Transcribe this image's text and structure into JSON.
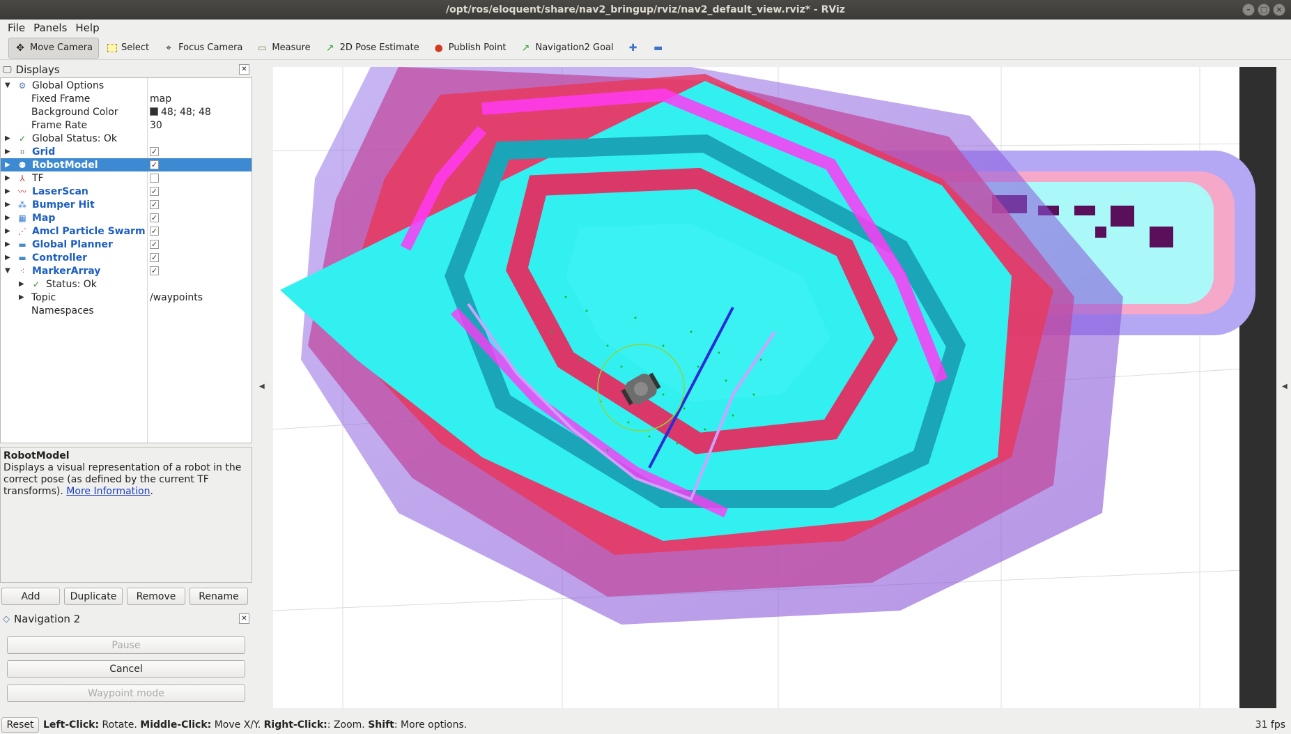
{
  "window": {
    "title": "/opt/ros/eloquent/share/nav2_bringup/rviz/nav2_default_view.rviz* - RViz"
  },
  "menu": [
    "File",
    "Panels",
    "Help"
  ],
  "toolbar": {
    "move_camera": "Move Camera",
    "select": "Select",
    "focus_camera": "Focus Camera",
    "measure": "Measure",
    "pose_estimate": "2D Pose Estimate",
    "publish_point": "Publish Point",
    "nav_goal": "Navigation2 Goal"
  },
  "displays_panel": {
    "title": "Displays",
    "rows": {
      "global_options": "Global Options",
      "fixed_frame": "Fixed Frame",
      "fixed_frame_value": "map",
      "background_color": "Background Color",
      "background_color_value": "48; 48; 48",
      "frame_rate": "Frame Rate",
      "frame_rate_value": "30",
      "global_status": "Global Status: Ok",
      "grid": "Grid",
      "robot_model": "RobotModel",
      "tf": "TF",
      "laser_scan": "LaserScan",
      "bumper_hit": "Bumper Hit",
      "map": "Map",
      "amcl": "Amcl Particle Swarm",
      "global_planner": "Global Planner",
      "controller": "Controller",
      "marker_array": "MarkerArray",
      "status_ok": "Status: Ok",
      "topic": "Topic",
      "topic_value": "/waypoints",
      "namespaces": "Namespaces"
    }
  },
  "description": {
    "title": "RobotModel",
    "text": "Displays a visual representation of a robot in the correct pose (as defined by the current TF transforms).",
    "link": "More Information",
    "tail": "."
  },
  "display_buttons": {
    "add": "Add",
    "duplicate": "Duplicate",
    "remove": "Remove",
    "rename": "Rename"
  },
  "nav_panel": {
    "title": "Navigation 2",
    "pause": "Pause",
    "cancel": "Cancel",
    "waypoint": "Waypoint mode"
  },
  "statusbar": {
    "reset": "Reset",
    "left_click": "Left-Click:",
    "left_click_desc": " Rotate. ",
    "middle_click": "Middle-Click:",
    "middle_click_desc": " Move X/Y. ",
    "right_click": "Right-Click:",
    "right_click_desc": ": Zoom. ",
    "shift": "Shift",
    "shift_desc": ": More options.",
    "fps": "31 fps"
  }
}
